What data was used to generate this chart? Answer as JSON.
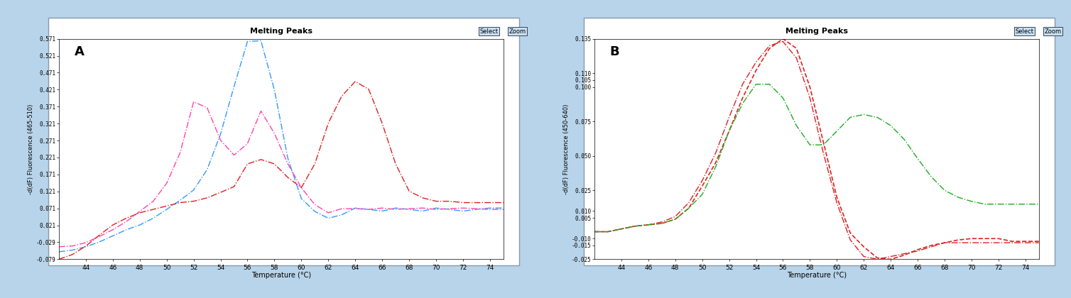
{
  "title": "Melting Peaks",
  "xlabel": "Temperature (°C)",
  "ylabel_A": "-d(dF) Fluorescence (465-510)",
  "ylabel_B": "-d(dF) Fluorescence (450-640)",
  "bg_color": "#b8d4ea",
  "plot_bg": "#ffffff",
  "panel_A": {
    "xlim": [
      42,
      75
    ],
    "xticks": [
      44,
      46,
      48,
      50,
      52,
      54,
      56,
      58,
      60,
      62,
      64,
      66,
      68,
      70,
      72,
      74
    ],
    "ytick_vals": [
      0.571,
      0.521,
      0.471,
      0.421,
      0.371,
      0.321,
      0.271,
      0.221,
      0.171,
      0.121,
      0.071,
      0.021,
      -0.029,
      -0.079
    ],
    "ylim": [
      0.571,
      -0.079
    ],
    "curves": [
      {
        "color": "#3399ff",
        "linestyle": "-.",
        "lw": 1.0,
        "x": [
          42,
          43,
          44,
          45,
          46,
          47,
          48,
          49,
          50,
          51,
          52,
          53,
          54,
          55,
          56,
          57,
          58,
          59,
          60,
          61,
          62,
          63,
          64,
          65,
          66,
          67,
          68,
          69,
          70,
          71,
          72,
          73,
          74,
          75
        ],
        "y": [
          -0.057,
          -0.052,
          -0.042,
          -0.028,
          -0.01,
          0.008,
          0.022,
          0.042,
          0.068,
          0.095,
          0.125,
          0.185,
          0.29,
          0.43,
          0.563,
          0.565,
          0.42,
          0.218,
          0.1,
          0.062,
          0.042,
          0.052,
          0.072,
          0.068,
          0.063,
          0.072,
          0.068,
          0.063,
          0.072,
          0.068,
          0.063,
          0.068,
          0.072,
          0.072
        ]
      },
      {
        "color": "#ff44aa",
        "linestyle": "-.",
        "lw": 1.0,
        "x": [
          42,
          43,
          44,
          45,
          46,
          47,
          48,
          49,
          50,
          51,
          52,
          53,
          54,
          55,
          56,
          57,
          58,
          59,
          60,
          61,
          62,
          63,
          64,
          65,
          66,
          67,
          68,
          69,
          70,
          71,
          72,
          73,
          74,
          75
        ],
        "y": [
          -0.042,
          -0.04,
          -0.03,
          -0.012,
          0.008,
          0.032,
          0.062,
          0.092,
          0.145,
          0.235,
          0.385,
          0.368,
          0.272,
          0.228,
          0.262,
          0.358,
          0.292,
          0.202,
          0.132,
          0.082,
          0.058,
          0.07,
          0.07,
          0.068,
          0.072,
          0.068,
          0.07,
          0.072,
          0.068,
          0.07,
          0.072,
          0.07,
          0.068,
          0.068
        ]
      },
      {
        "color": "#dd2222",
        "linestyle": "-.",
        "lw": 1.0,
        "x": [
          42,
          43,
          44,
          45,
          46,
          47,
          48,
          49,
          50,
          51,
          52,
          53,
          54,
          55,
          56,
          57,
          58,
          59,
          60,
          61,
          62,
          63,
          64,
          65,
          66,
          67,
          68,
          69,
          70,
          71,
          72,
          73,
          74,
          75
        ],
        "y": [
          -0.079,
          -0.065,
          -0.04,
          -0.008,
          0.022,
          0.042,
          0.058,
          0.068,
          0.078,
          0.088,
          0.092,
          0.102,
          0.118,
          0.135,
          0.202,
          0.215,
          0.202,
          0.162,
          0.132,
          0.202,
          0.322,
          0.402,
          0.445,
          0.422,
          0.322,
          0.202,
          0.122,
          0.102,
          0.092,
          0.092,
          0.088,
          0.088,
          0.088,
          0.088
        ]
      }
    ]
  },
  "panel_B": {
    "xlim": [
      42,
      75
    ],
    "xticks": [
      44,
      46,
      48,
      50,
      52,
      54,
      56,
      58,
      60,
      62,
      64,
      66,
      68,
      70,
      72,
      74
    ],
    "ytick_vals": [
      0.135,
      0.11,
      0.105,
      0.1,
      0.075,
      0.05,
      0.025,
      0.01,
      0.005,
      -0.01,
      -0.015,
      -0.025
    ],
    "ylim": [
      0.135,
      -0.025
    ],
    "curves": [
      {
        "color": "#dd2222",
        "linestyle": "--",
        "lw": 1.2,
        "x": [
          42,
          43,
          44,
          45,
          46,
          47,
          48,
          49,
          50,
          51,
          52,
          53,
          54,
          55,
          56,
          57,
          58,
          59,
          60,
          61,
          62,
          63,
          64,
          65,
          66,
          67,
          68,
          69,
          70,
          71,
          72,
          73,
          74,
          75
        ],
        "y": [
          -0.005,
          -0.005,
          -0.003,
          -0.001,
          0.0,
          0.001,
          0.004,
          0.012,
          0.028,
          0.045,
          0.068,
          0.092,
          0.112,
          0.128,
          0.135,
          0.128,
          0.1,
          0.06,
          0.02,
          -0.006,
          -0.016,
          -0.024,
          -0.025,
          -0.022,
          -0.018,
          -0.015,
          -0.013,
          -0.011,
          -0.01,
          -0.01,
          -0.01,
          -0.012,
          -0.012,
          -0.012
        ]
      },
      {
        "color": "#dd2222",
        "linestyle": "-.",
        "lw": 1.0,
        "x": [
          42,
          43,
          44,
          45,
          46,
          47,
          48,
          49,
          50,
          51,
          52,
          53,
          54,
          55,
          56,
          57,
          58,
          59,
          60,
          61,
          62,
          63,
          64,
          65,
          66,
          67,
          68,
          69,
          70,
          71,
          72,
          73,
          74,
          75
        ],
        "y": [
          -0.005,
          -0.005,
          -0.003,
          -0.001,
          0.0,
          0.002,
          0.006,
          0.016,
          0.032,
          0.052,
          0.078,
          0.102,
          0.118,
          0.13,
          0.133,
          0.121,
          0.092,
          0.052,
          0.016,
          -0.011,
          -0.023,
          -0.025,
          -0.023,
          -0.021,
          -0.019,
          -0.016,
          -0.013,
          -0.013,
          -0.013,
          -0.013,
          -0.013,
          -0.013,
          -0.013,
          -0.013
        ]
      },
      {
        "color": "#22aa22",
        "linestyle": "-.",
        "lw": 1.0,
        "x": [
          42,
          43,
          44,
          45,
          46,
          47,
          48,
          49,
          50,
          51,
          52,
          53,
          54,
          55,
          56,
          57,
          58,
          59,
          60,
          61,
          62,
          63,
          64,
          65,
          66,
          67,
          68,
          69,
          70,
          71,
          72,
          73,
          74,
          75
        ],
        "y": [
          -0.005,
          -0.005,
          -0.003,
          -0.001,
          0.0,
          0.001,
          0.004,
          0.012,
          0.022,
          0.042,
          0.068,
          0.088,
          0.102,
          0.102,
          0.092,
          0.072,
          0.058,
          0.058,
          0.068,
          0.078,
          0.08,
          0.078,
          0.072,
          0.062,
          0.048,
          0.035,
          0.025,
          0.02,
          0.017,
          0.015,
          0.015,
          0.015,
          0.015,
          0.015
        ]
      }
    ]
  }
}
